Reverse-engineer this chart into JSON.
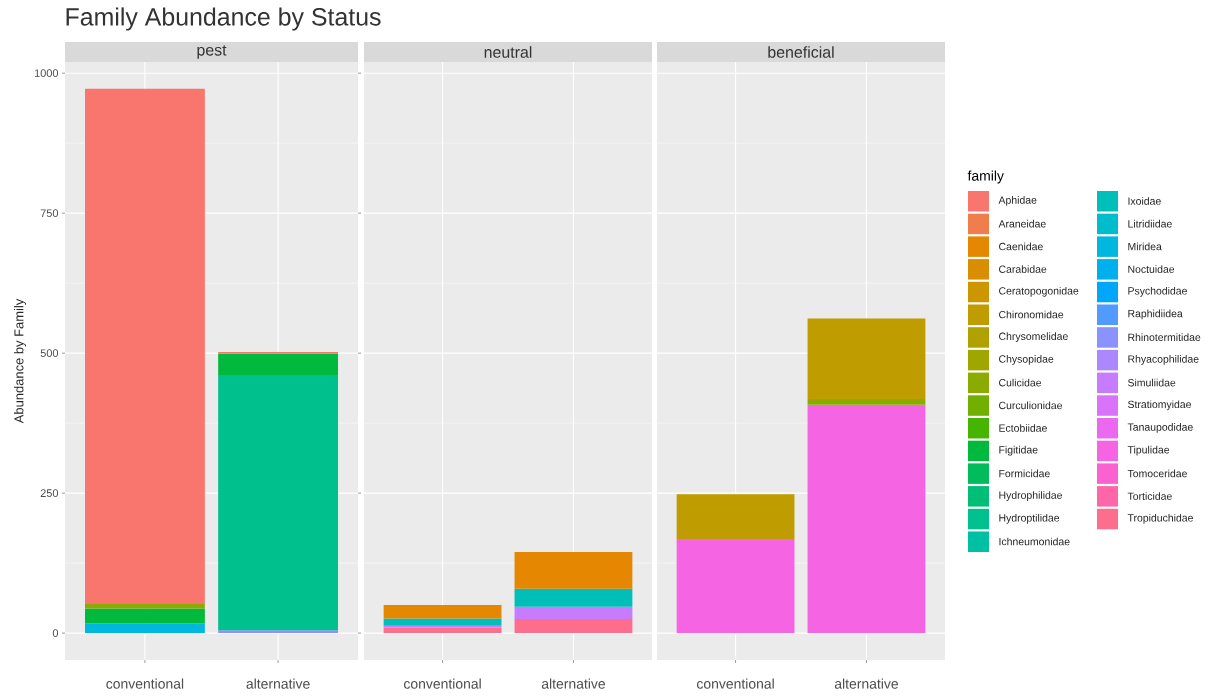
{
  "chart_data": [
    {
      "type": "bar",
      "stacked": true,
      "title": "Family Abundance by Status",
      "subtitle": "pest",
      "ylabel": "Abundance by Family",
      "categories": [
        "conventional",
        "alternative"
      ],
      "ylim": [
        -48,
        1020
      ],
      "yticks": [
        0,
        250,
        500,
        750,
        1000
      ],
      "grid": true,
      "series": [
        {
          "color": "#8A92FF",
          "values": [
            null,
            5
          ]
        },
        {
          "color": "#00B7DE",
          "values": [
            17,
            null
          ]
        },
        {
          "color": "#00C08D",
          "values": [
            null,
            456
          ]
        },
        {
          "color": "#00B93D",
          "values": [
            27,
            38
          ]
        },
        {
          "color": "#8CAB00",
          "values": [
            8,
            null
          ]
        },
        {
          "color": "#F8766D",
          "values": [
            920,
            3
          ]
        }
      ]
    },
    {
      "type": "bar",
      "stacked": true,
      "subtitle": "neutral",
      "categories": [
        "conventional",
        "alternative"
      ],
      "ylim": [
        -48,
        1020
      ],
      "yticks": [
        0,
        250,
        500,
        750,
        1000
      ],
      "grid": true,
      "tick_labels": "x",
      "series": [
        {
          "color": "#FC6E8B",
          "values": [
            10,
            25
          ]
        },
        {
          "color": "#C77CFF",
          "values": [
            3,
            22
          ]
        },
        {
          "color": "#00BFB9",
          "values": [
            13,
            32
          ]
        },
        {
          "color": "#E58700",
          "values": [
            24,
            66
          ]
        }
      ]
    },
    {
      "type": "bar",
      "stacked": true,
      "subtitle": "beneficial",
      "categories": [
        "conventional",
        "alternative"
      ],
      "ylim": [
        -48,
        1020
      ],
      "yticks": [
        0,
        250,
        500,
        750,
        1000
      ],
      "grid": true,
      "tick_labels": "x",
      "legend": "right",
      "legend_title": "family",
      "series": [
        {
          "name": "Tropiduchidae",
          "color": "#FC6E8B",
          "values": [
            null,
            null
          ]
        },
        {
          "name": "Torticidae",
          "color": "#FF66A8",
          "values": [
            null,
            null
          ]
        },
        {
          "name": "Tomoceridae",
          "color": "#FC61D1",
          "values": [
            null,
            null
          ]
        },
        {
          "name": "Tipulidae",
          "color": "#F564E3",
          "values": [
            168,
            408
          ]
        },
        {
          "name": "Tanaupodidae",
          "color": "#EA69F0",
          "values": [
            null,
            null
          ]
        },
        {
          "name": "Stratiomyidae",
          "color": "#DB72FB",
          "values": [
            null,
            null
          ]
        },
        {
          "name": "Simuliidae",
          "color": "#C77CFF",
          "values": [
            null,
            null
          ]
        },
        {
          "name": "Rhyacophilidae",
          "color": "#AC88FF",
          "values": [
            null,
            null
          ]
        },
        {
          "name": "Rhinotermitidae",
          "color": "#8A92FF",
          "values": [
            null,
            null
          ]
        },
        {
          "name": "Raphidiidea",
          "color": "#519BFF",
          "values": [
            null,
            null
          ]
        },
        {
          "name": "Psychodidae",
          "color": "#00A6F9",
          "values": [
            null,
            null
          ]
        },
        {
          "name": "Noctuidae",
          "color": "#00B0ED",
          "values": [
            null,
            null
          ]
        },
        {
          "name": "Miridea",
          "color": "#00B7DE",
          "values": [
            null,
            null
          ]
        },
        {
          "name": "Litridiidae",
          "color": "#00BCCD",
          "values": [
            null,
            null
          ]
        },
        {
          "name": "Ixoidae",
          "color": "#00BFB9",
          "values": [
            null,
            null
          ]
        },
        {
          "name": "Ichneumonidae",
          "color": "#00C0A4",
          "values": [
            null,
            null
          ]
        },
        {
          "name": "Hydroptilidae",
          "color": "#00C08D",
          "values": [
            null,
            null
          ]
        },
        {
          "name": "Hydrophilidae",
          "color": "#00BE75",
          "values": [
            null,
            null
          ]
        },
        {
          "name": "Formicidae",
          "color": "#00BC5B",
          "values": [
            null,
            null
          ]
        },
        {
          "name": "Figitidae",
          "color": "#00B93D",
          "values": [
            null,
            null
          ]
        },
        {
          "name": "Ectobiidae",
          "color": "#45B500",
          "values": [
            null,
            null
          ]
        },
        {
          "name": "Curculionidae",
          "color": "#71B000",
          "values": [
            null,
            null
          ]
        },
        {
          "name": "Culicidae",
          "color": "#8CAB00",
          "values": [
            null,
            10
          ]
        },
        {
          "name": "Chysopidae",
          "color": "#A0A600",
          "values": [
            null,
            null
          ]
        },
        {
          "name": "Chrysomelidae",
          "color": "#B0A100",
          "values": [
            null,
            null
          ]
        },
        {
          "name": "Chironomidae",
          "color": "#BF9C00",
          "values": [
            80,
            144
          ]
        },
        {
          "name": "Ceratopogonidae",
          "color": "#CD9600",
          "values": [
            null,
            null
          ]
        },
        {
          "name": "Carabidae",
          "color": "#D98E00",
          "values": [
            null,
            null
          ]
        },
        {
          "name": "Caenidae",
          "color": "#E58700",
          "values": [
            null,
            null
          ]
        },
        {
          "name": "Araneidae",
          "color": "#F07E4D",
          "values": [
            null,
            null
          ]
        },
        {
          "name": "Aphidae",
          "color": "#F8766D",
          "values": [
            null,
            null
          ]
        }
      ]
    }
  ]
}
